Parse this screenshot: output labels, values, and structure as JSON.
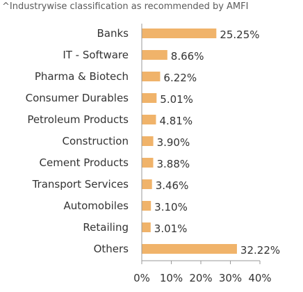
{
  "footnote": "^Industrywise classification as recommended by AMFI",
  "chart_data": {
    "type": "bar",
    "orientation": "horizontal",
    "categories": [
      "Banks",
      "IT - Software",
      "Pharma & Biotech",
      "Consumer Durables",
      "Petroleum Products",
      "Construction",
      "Cement Products",
      "Transport Services",
      "Automobiles",
      "Retailing",
      "Others"
    ],
    "values": [
      25.25,
      8.66,
      6.22,
      5.01,
      4.81,
      3.9,
      3.88,
      3.46,
      3.1,
      3.01,
      32.22
    ],
    "value_labels": [
      "25.25%",
      "8.66%",
      "6.22%",
      "5.01%",
      "4.81%",
      "3.90%",
      "3.88%",
      "3.46%",
      "3.10%",
      "3.01%",
      "32.22%"
    ],
    "xticks": [
      "0%",
      "10%",
      "20%",
      "30%",
      "40%"
    ],
    "xlim": [
      0,
      40
    ],
    "bar_color": "#f0b36a",
    "axis_color": "#9a9a9a",
    "grid": false,
    "title": "",
    "xlabel": "",
    "ylabel": ""
  }
}
